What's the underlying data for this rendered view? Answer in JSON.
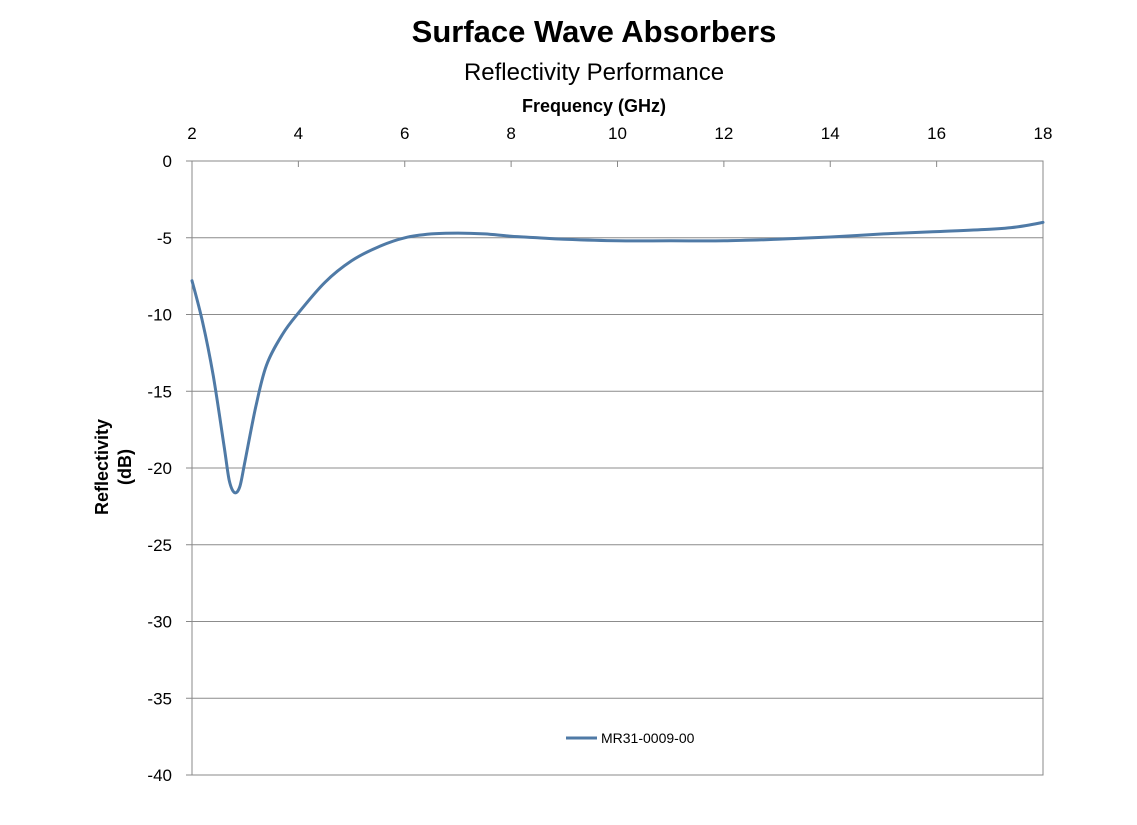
{
  "chart_data": {
    "type": "line",
    "title": "Surface Wave Absorbers",
    "subtitle": "Reflectivity Performance",
    "xlabel": "Frequency (GHz)",
    "ylabel_line1": "Reflectivity",
    "ylabel_line2": "(dB)",
    "x_axis_position": "top",
    "xlim": [
      2,
      18
    ],
    "ylim": [
      -40,
      0
    ],
    "x_ticks": [
      "2",
      "4",
      "6",
      "8",
      "10",
      "12",
      "14",
      "16",
      "18"
    ],
    "y_ticks": [
      "0",
      "-5",
      "-10",
      "-15",
      "-20",
      "-25",
      "-30",
      "-35",
      "-40"
    ],
    "grid": "horizontal",
    "legend_position": "bottom-center",
    "series": [
      {
        "name": "MR31-0009-00",
        "color": "#4f7aa6",
        "x": [
          2.0,
          2.2,
          2.4,
          2.6,
          2.7,
          2.8,
          2.9,
          3.0,
          3.2,
          3.4,
          3.7,
          4.0,
          4.5,
          5.0,
          5.5,
          6.0,
          6.5,
          7.0,
          7.5,
          8.0,
          8.5,
          9.0,
          10.0,
          11.0,
          12.0,
          13.0,
          14.0,
          15.0,
          16.0,
          17.0,
          17.5,
          18.0
        ],
        "y": [
          -7.8,
          -10.5,
          -14.0,
          -18.5,
          -20.8,
          -21.6,
          -21.2,
          -19.5,
          -16.0,
          -13.3,
          -11.3,
          -9.9,
          -7.9,
          -6.5,
          -5.6,
          -5.0,
          -4.75,
          -4.7,
          -4.75,
          -4.9,
          -5.0,
          -5.1,
          -5.2,
          -5.2,
          -5.2,
          -5.1,
          -4.95,
          -4.75,
          -4.6,
          -4.45,
          -4.3,
          -4.0
        ]
      }
    ]
  }
}
